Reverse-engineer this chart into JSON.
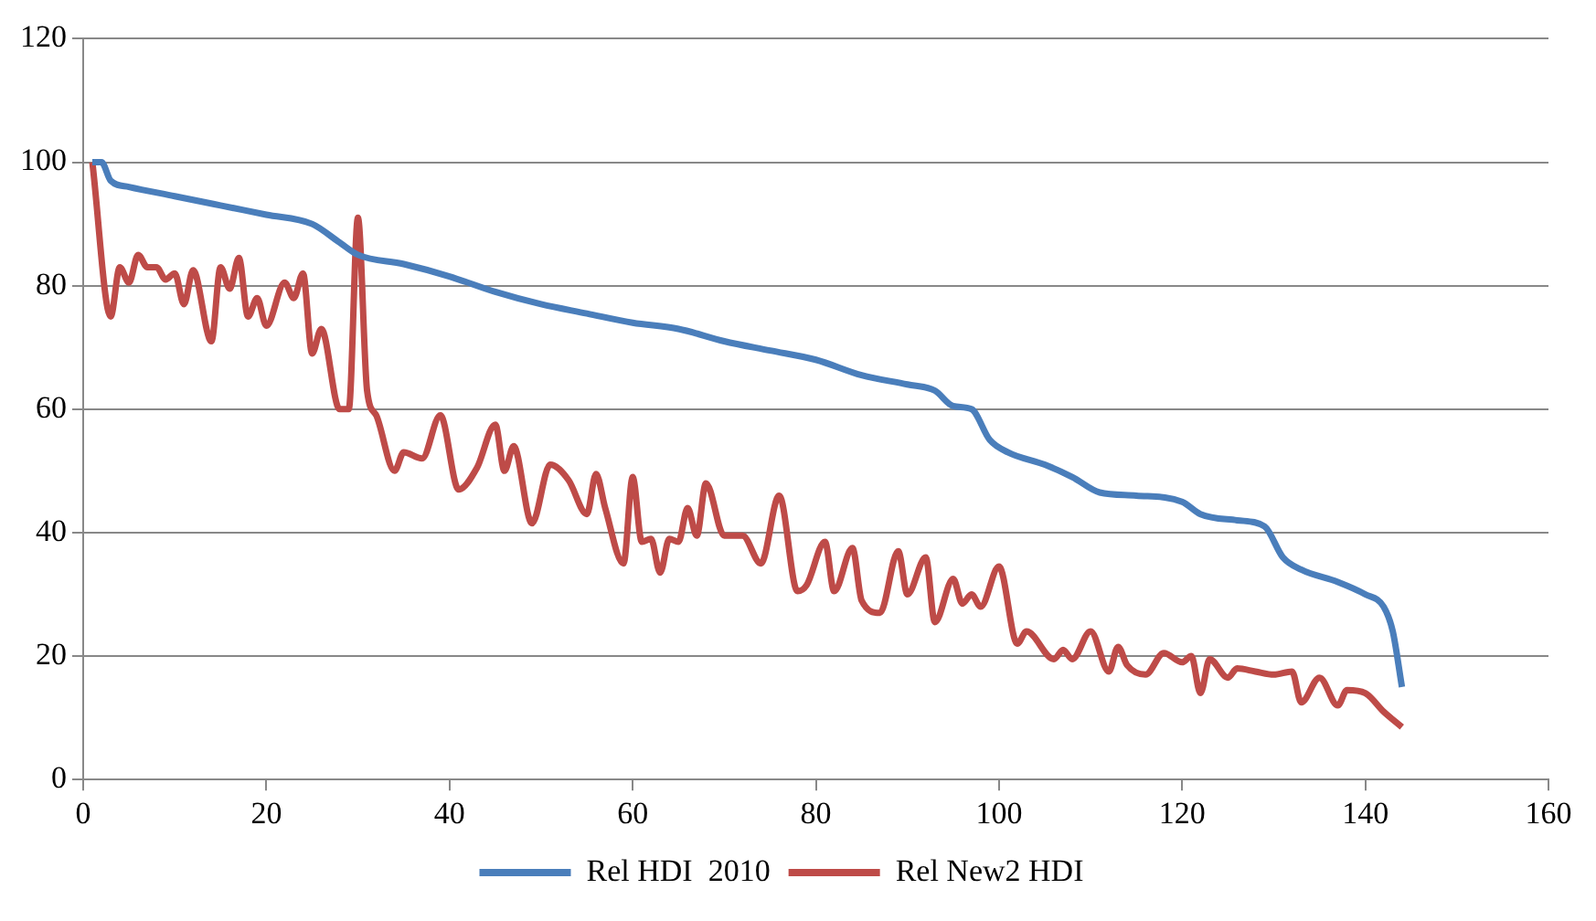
{
  "chart_data": {
    "type": "line",
    "xlim": [
      0,
      160
    ],
    "xticks": [
      0,
      20,
      40,
      60,
      80,
      100,
      120,
      140,
      160
    ],
    "ylim": [
      0,
      120
    ],
    "yticks": [
      0,
      20,
      40,
      60,
      80,
      100,
      120
    ],
    "grid": "y",
    "legend": "bottom",
    "marker": "none",
    "line_style": "solid",
    "series": [
      {
        "name": "Rel HDI  2010",
        "color": "#4a7ebb",
        "x": [
          1,
          2,
          3,
          5,
          10,
          15,
          20,
          25,
          28,
          30,
          35,
          40,
          45,
          50,
          55,
          60,
          65,
          70,
          75,
          80,
          85,
          90,
          93,
          95,
          97,
          99,
          101,
          105,
          108,
          111,
          115,
          120,
          122,
          126,
          129,
          131,
          133,
          137,
          140,
          142,
          143,
          144
        ],
        "values": [
          100,
          100,
          97,
          96,
          94.5,
          93,
          91.5,
          90,
          87,
          85,
          83.5,
          81.5,
          79,
          77,
          75.5,
          74,
          73,
          71,
          69.5,
          68,
          65.5,
          64,
          63,
          60.5,
          60,
          55,
          53,
          51,
          49,
          46.5,
          46,
          45,
          43,
          42,
          41,
          36,
          34,
          32,
          30,
          28,
          24,
          15
        ]
      },
      {
        "name": "Rel New2 HDI",
        "color": "#be4b48",
        "x": [
          1,
          3,
          4,
          5,
          6,
          7,
          8,
          9,
          10,
          11,
          12,
          14,
          15,
          16,
          17,
          18,
          19,
          20,
          22,
          23,
          24,
          25,
          26,
          28,
          29,
          30,
          31,
          32,
          34,
          35,
          37,
          39,
          41,
          43,
          45,
          46,
          47,
          49,
          51,
          53,
          55,
          56,
          57,
          59,
          60,
          61,
          62,
          63,
          64,
          65,
          66,
          67,
          68,
          70,
          72,
          74,
          76,
          78,
          79,
          81,
          82,
          84,
          85,
          87,
          89,
          90,
          92,
          93,
          95,
          96,
          97,
          98,
          100,
          102,
          103,
          106,
          107,
          108,
          110,
          112,
          113,
          114,
          116,
          118,
          120,
          121,
          122,
          123,
          125,
          126,
          128,
          130,
          132,
          133,
          135,
          137,
          138,
          140,
          142,
          144
        ],
        "values": [
          100,
          75,
          83,
          80.5,
          85,
          83,
          83,
          81,
          82,
          77,
          82.5,
          71,
          83,
          79.5,
          84.5,
          75,
          78,
          73.5,
          80.5,
          78,
          82,
          69,
          73,
          60,
          60,
          91,
          63,
          59,
          50,
          53,
          52,
          59,
          47,
          50.5,
          57.5,
          50,
          54,
          41.5,
          51,
          48.5,
          43,
          49.5,
          44,
          35,
          49,
          38.5,
          39,
          33.5,
          39,
          38.5,
          44,
          39.5,
          48,
          39.5,
          39.5,
          35,
          46,
          30.5,
          31.5,
          38.5,
          30.5,
          37.5,
          29,
          27,
          37,
          30,
          36,
          25.5,
          32.5,
          28.5,
          30,
          28,
          34.5,
          22,
          24,
          19.5,
          21,
          19.5,
          24,
          17.5,
          21.5,
          18.5,
          17,
          20.5,
          19,
          20,
          14,
          19.5,
          16.5,
          18,
          17.5,
          17,
          17.5,
          12.5,
          16.5,
          12,
          14.5,
          14,
          11,
          8.5
        ]
      }
    ]
  }
}
